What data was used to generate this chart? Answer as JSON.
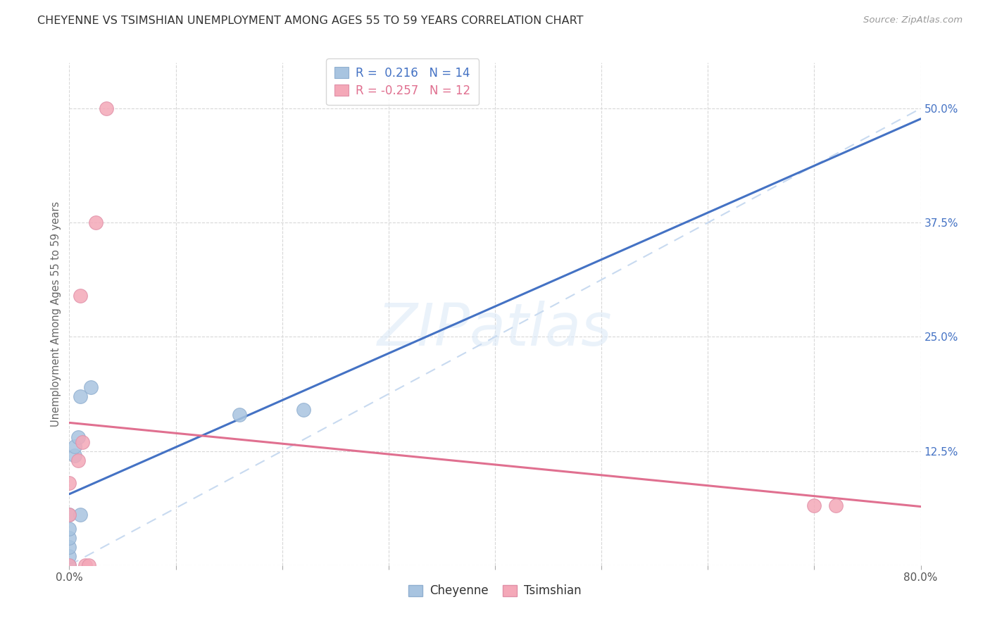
{
  "title": "CHEYENNE VS TSIMSHIAN UNEMPLOYMENT AMONG AGES 55 TO 59 YEARS CORRELATION CHART",
  "source": "Source: ZipAtlas.com",
  "ylabel": "Unemployment Among Ages 55 to 59 years",
  "cheyenne_x": [
    0.0,
    0.0,
    0.0,
    0.0,
    0.0,
    0.0,
    0.005,
    0.005,
    0.008,
    0.01,
    0.01,
    0.02,
    0.16,
    0.22
  ],
  "cheyenne_y": [
    0.0,
    0.01,
    0.02,
    0.03,
    0.04,
    0.055,
    0.12,
    0.13,
    0.14,
    0.055,
    0.185,
    0.195,
    0.165,
    0.17
  ],
  "tsimshian_x": [
    0.0,
    0.0,
    0.0,
    0.008,
    0.01,
    0.012,
    0.015,
    0.018,
    0.025,
    0.035,
    0.7,
    0.72
  ],
  "tsimshian_y": [
    0.0,
    0.055,
    0.09,
    0.115,
    0.295,
    0.135,
    0.0,
    0.0,
    0.375,
    0.5,
    0.065,
    0.065
  ],
  "cheyenne_R": 0.216,
  "cheyenne_N": 14,
  "tsimshian_R": -0.257,
  "tsimshian_N": 12,
  "cheyenne_scatter_color": "#a8c4e0",
  "tsimshian_scatter_color": "#f4a8b8",
  "cheyenne_line_color": "#4472c4",
  "tsimshian_line_color": "#e07090",
  "ref_line_color": "#c8daf0",
  "xlim": [
    0.0,
    0.8
  ],
  "ylim": [
    0.0,
    0.55
  ],
  "xticks": [
    0.0,
    0.1,
    0.2,
    0.3,
    0.4,
    0.5,
    0.6,
    0.7,
    0.8
  ],
  "yticks": [
    0.0,
    0.125,
    0.25,
    0.375,
    0.5
  ],
  "background_color": "#ffffff",
  "watermark_text": "ZIPatlas",
  "title_fontsize": 11.5,
  "source_fontsize": 9.5,
  "tick_fontsize": 11,
  "legend_fontsize": 12,
  "ylabel_fontsize": 10.5
}
